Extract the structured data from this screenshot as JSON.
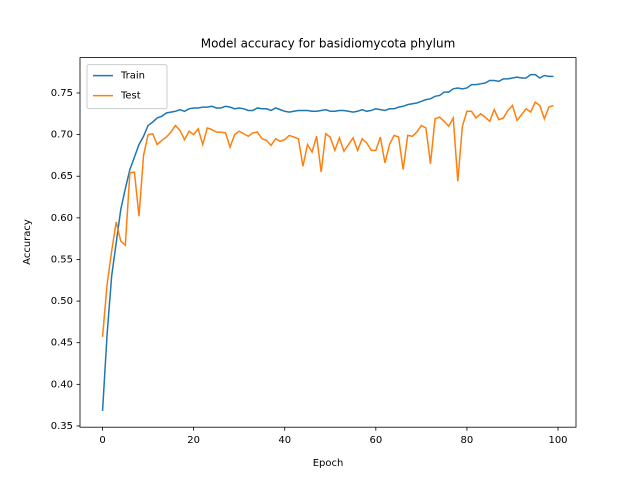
{
  "chart_data": {
    "type": "line",
    "title": "Model accuracy for basidiomycota phylum",
    "x_label": "Epoch",
    "y_label": "Accuracy",
    "x": [
      0,
      1,
      2,
      3,
      4,
      5,
      6,
      7,
      8,
      9,
      10,
      11,
      12,
      13,
      14,
      15,
      16,
      17,
      18,
      19,
      20,
      21,
      22,
      23,
      24,
      25,
      26,
      27,
      28,
      29,
      30,
      31,
      32,
      33,
      34,
      35,
      36,
      37,
      38,
      39,
      40,
      41,
      42,
      43,
      44,
      45,
      46,
      47,
      48,
      49,
      50,
      51,
      52,
      53,
      54,
      55,
      56,
      57,
      58,
      59,
      60,
      61,
      62,
      63,
      64,
      65,
      66,
      67,
      68,
      69,
      70,
      71,
      72,
      73,
      74,
      75,
      76,
      77,
      78,
      79,
      80,
      81,
      82,
      83,
      84,
      85,
      86,
      87,
      88,
      89,
      90,
      91,
      92,
      93,
      94,
      95,
      96,
      97,
      98,
      99
    ],
    "series": [
      {
        "name": "Train",
        "color": "#1f77b4",
        "values": [
          0.368,
          0.46,
          0.53,
          0.57,
          0.61,
          0.635,
          0.658,
          0.673,
          0.688,
          0.698,
          0.711,
          0.715,
          0.72,
          0.722,
          0.726,
          0.727,
          0.728,
          0.73,
          0.728,
          0.731,
          0.732,
          0.732,
          0.733,
          0.733,
          0.734,
          0.732,
          0.732,
          0.734,
          0.733,
          0.731,
          0.732,
          0.731,
          0.729,
          0.729,
          0.732,
          0.731,
          0.731,
          0.729,
          0.732,
          0.73,
          0.728,
          0.727,
          0.728,
          0.729,
          0.729,
          0.729,
          0.728,
          0.728,
          0.729,
          0.73,
          0.728,
          0.728,
          0.729,
          0.729,
          0.728,
          0.727,
          0.728,
          0.73,
          0.728,
          0.729,
          0.731,
          0.73,
          0.729,
          0.731,
          0.731,
          0.733,
          0.734,
          0.736,
          0.737,
          0.738,
          0.74,
          0.742,
          0.743,
          0.746,
          0.747,
          0.751,
          0.751,
          0.755,
          0.756,
          0.755,
          0.756,
          0.76,
          0.76,
          0.761,
          0.762,
          0.765,
          0.765,
          0.764,
          0.767,
          0.767,
          0.768,
          0.769,
          0.768,
          0.768,
          0.772,
          0.772,
          0.768,
          0.771,
          0.77,
          0.77
        ]
      },
      {
        "name": "Test",
        "color": "#ff7f0e",
        "values": [
          0.457,
          0.52,
          0.56,
          0.595,
          0.572,
          0.567,
          0.654,
          0.655,
          0.602,
          0.675,
          0.7,
          0.701,
          0.688,
          0.693,
          0.697,
          0.703,
          0.711,
          0.705,
          0.694,
          0.704,
          0.7,
          0.707,
          0.688,
          0.708,
          0.706,
          0.703,
          0.703,
          0.702,
          0.685,
          0.7,
          0.704,
          0.701,
          0.698,
          0.702,
          0.703,
          0.695,
          0.693,
          0.687,
          0.695,
          0.692,
          0.694,
          0.699,
          0.697,
          0.695,
          0.662,
          0.688,
          0.679,
          0.698,
          0.655,
          0.701,
          0.697,
          0.681,
          0.696,
          0.68,
          0.688,
          0.696,
          0.681,
          0.695,
          0.69,
          0.681,
          0.681,
          0.697,
          0.666,
          0.688,
          0.699,
          0.697,
          0.658,
          0.699,
          0.698,
          0.703,
          0.711,
          0.708,
          0.665,
          0.719,
          0.721,
          0.716,
          0.71,
          0.72,
          0.644,
          0.71,
          0.728,
          0.728,
          0.72,
          0.725,
          0.721,
          0.716,
          0.73,
          0.718,
          0.72,
          0.729,
          0.735,
          0.717,
          0.724,
          0.731,
          0.727,
          0.739,
          0.735,
          0.719,
          0.733,
          0.735
        ]
      }
    ],
    "xlim": [
      -4.95,
      103.95
    ],
    "ylim": [
      0.3485,
      0.7925
    ],
    "xticks": [
      0,
      20,
      40,
      60,
      80,
      100
    ],
    "yticks": [
      0.35,
      {
        "value": 0.4,
        "label": "0.40"
      },
      0.45,
      {
        "value": 0.5,
        "label": "0.50"
      },
      0.55,
      {
        "value": 0.6,
        "label": "0.60"
      },
      0.65,
      {
        "value": 0.7,
        "label": "0.70"
      },
      0.75
    ],
    "legend": "upper left"
  }
}
